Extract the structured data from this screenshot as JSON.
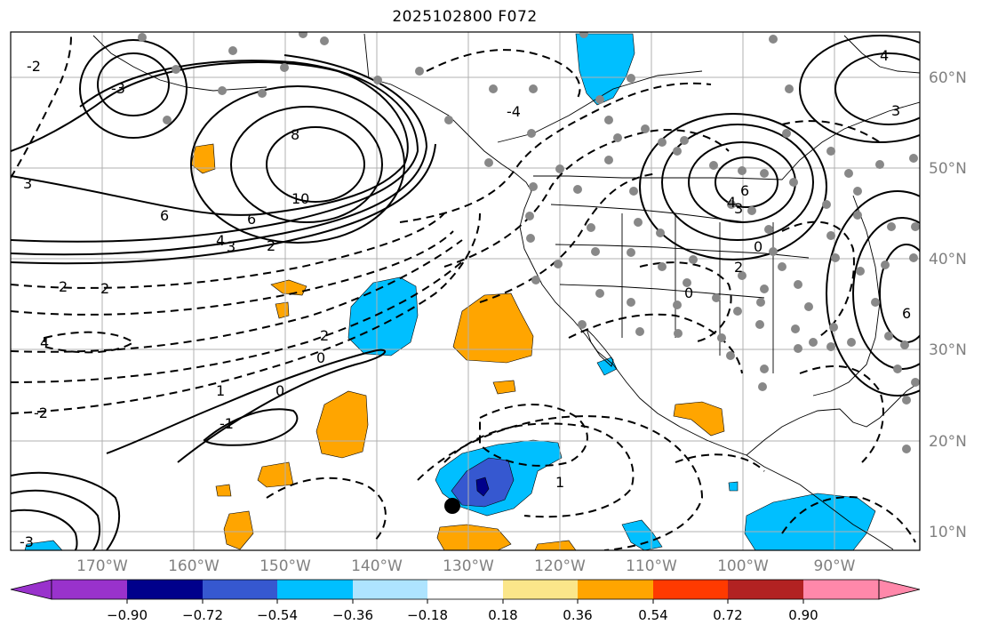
{
  "title": "2025102800 F072",
  "map": {
    "lat_labels": [
      "60°N",
      "50°N",
      "40°N",
      "30°N",
      "20°N",
      "10°N"
    ],
    "lon_labels": [
      "170°W",
      "160°W",
      "150°W",
      "140°W",
      "130°W",
      "120°W",
      "110°W",
      "100°W",
      "90°W"
    ],
    "contour_labels": [
      "8",
      "10",
      "6",
      "6",
      "4",
      "3",
      "3",
      "2",
      "2",
      "4",
      "2",
      "0",
      "1",
      "-1",
      "-2",
      "-3",
      "2",
      "1",
      "0",
      "-4",
      "6",
      "4",
      "3",
      "0",
      "2",
      "0",
      "6",
      "3",
      "4",
      "-2",
      "-3"
    ]
  },
  "colorbar": {
    "ticks": [
      "−0.90",
      "−0.72",
      "−0.54",
      "−0.36",
      "−0.18",
      "0.18",
      "0.36",
      "0.54",
      "0.72",
      "0.90"
    ],
    "colors": [
      "#9932cc",
      "#00008b",
      "#3658d0",
      "#00bfff",
      "#aee4ff",
      "#ffffff",
      "#fbe68a",
      "#ffa500",
      "#ff3a00",
      "#b22222",
      "#ff88aa"
    ]
  }
}
